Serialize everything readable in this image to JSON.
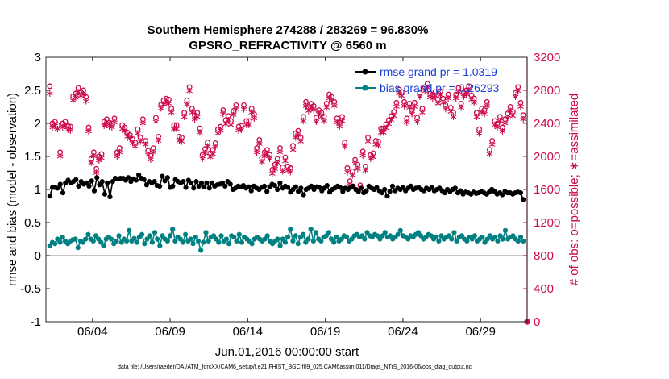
{
  "chart_data": {
    "type": "line",
    "title": "Southern Hemisphere 274288 / 283269 = 96.830%",
    "subtitle": "GPSRO_REFRACTIVITY @ 6560 m",
    "xlabel": "Jun.01,2016 00:00:00 start",
    "ylabel_left": "rmse and bias (model - observation)",
    "ylabel_right": "# of obs: o=possible; ∗=assimilated",
    "footnote": "data file: /Users/raeder/DAI/ATM_forcXX/CAM6_setup/f.e21.FHIST_BGC.f09_025.CAM6assim.011/Diags_NTrS_2016-06/obs_diag_output.nc",
    "x_range_days": [
      1,
      32
    ],
    "x_ticks": [
      {
        "day": 4,
        "label": "06/04"
      },
      {
        "day": 9,
        "label": "06/09"
      },
      {
        "day": 14,
        "label": "06/14"
      },
      {
        "day": 19,
        "label": "06/19"
      },
      {
        "day": 24,
        "label": "06/24"
      },
      {
        "day": 29,
        "label": "06/29"
      }
    ],
    "y_left_range": [
      -1,
      3
    ],
    "y_left_ticks": [
      "-1",
      "-0.5",
      "0",
      "0.5",
      "1",
      "1.5",
      "2",
      "2.5",
      "3"
    ],
    "y_right_range": [
      0,
      3200
    ],
    "y_right_ticks": [
      "0",
      "400",
      "800",
      "1200",
      "1600",
      "2000",
      "2400",
      "2800",
      "3200"
    ],
    "grid": false,
    "legend_position": "top-right",
    "colors": {
      "rmse": "#000000",
      "bias": "#008080",
      "obs": "#cc0a4b",
      "zero_line": "#b3b3b3"
    },
    "series": [
      {
        "name": "rmse grand pr = 1.0319",
        "axis": "left",
        "values": [
          0.9,
          1.03,
          1.03,
          1.02,
          1.08,
          0.95,
          1.1,
          1.14,
          1.1,
          1.12,
          1.15,
          1.05,
          1.12,
          1.08,
          1.1,
          1.05,
          1.13,
          0.98,
          1.18,
          1.07,
          1.12,
          0.93,
          1.1,
          0.89,
          1.12,
          1.17,
          1.16,
          1.17,
          1.17,
          1.14,
          1.18,
          1.12,
          1.16,
          1.14,
          1.22,
          1.17,
          1.15,
          1.07,
          1.12,
          1.1,
          1.12,
          1.06,
          1.05,
          1.2,
          1.13,
          1.18,
          1.03,
          1.05,
          1.15,
          1.12,
          1.1,
          1.12,
          1.03,
          1.14,
          1.1,
          1.02,
          1.12,
          1.05,
          1.1,
          1.04,
          1.1,
          1.02,
          1.1,
          1.05,
          1.07,
          1.08,
          1.1,
          1.05,
          1.12,
          1.08,
          1.0,
          1.02,
          1.05,
          1.04,
          1.06,
          1.02,
          1.04,
          0.98,
          1.05,
          1.02,
          1.0,
          1.03,
          1.05,
          0.97,
          1.04,
          1.08,
          1.06,
          1.0,
          1.1,
          1.02,
          1.05,
          1.03,
          0.96,
          1.0,
          1.04,
          0.97,
          1.02,
          0.92,
          1.0,
          1.02,
          1.05,
          1.0,
          1.04,
          1.03,
          0.98,
          1.02,
          1.06,
          0.96,
          1.0,
          1.02,
          1.05,
          1.03,
          0.97,
          1.02,
          1.0,
          1.03,
          1.05,
          1.0,
          0.97,
          1.02,
          0.95,
          0.98,
          1.05,
          1.02,
          1.0,
          1.03,
          0.98,
          0.95,
          1.0,
          0.9,
          0.97,
          1.05,
          0.98,
          1.02,
          1.0,
          1.03,
          0.98,
          1.02,
          1.05,
          1.0,
          1.02,
          1.03,
          1.0,
          0.98,
          1.02,
          1.0,
          1.03,
          0.98,
          1.0,
          1.02,
          0.98,
          0.95,
          1.0,
          0.97,
          1.0,
          1.02,
          0.95,
          0.98,
          0.93,
          0.96,
          0.95,
          0.93,
          0.96,
          0.94,
          0.95,
          0.97,
          0.95,
          0.93,
          0.96,
          1.0,
          0.97,
          0.93,
          0.95,
          0.92,
          0.97,
          0.95,
          0.95,
          0.93,
          0.95,
          0.96,
          0.95,
          0.85
        ]
      },
      {
        "name": "bias grand pr = 0.26293",
        "axis": "left",
        "values": [
          0.15,
          0.2,
          0.18,
          0.25,
          0.2,
          0.28,
          0.22,
          0.18,
          0.22,
          0.24,
          0.25,
          0.12,
          0.22,
          0.2,
          0.25,
          0.32,
          0.25,
          0.22,
          0.3,
          0.25,
          0.2,
          0.15,
          0.25,
          0.28,
          0.25,
          0.18,
          0.22,
          0.3,
          0.2,
          0.25,
          0.22,
          0.38,
          0.22,
          0.26,
          0.2,
          0.28,
          0.32,
          0.18,
          0.25,
          0.3,
          0.2,
          0.35,
          0.25,
          0.15,
          0.3,
          0.25,
          0.22,
          0.3,
          0.4,
          0.22,
          0.28,
          0.25,
          0.2,
          0.32,
          0.22,
          0.25,
          0.18,
          0.28,
          0.22,
          0.08,
          0.2,
          0.35,
          0.22,
          0.28,
          0.3,
          0.25,
          0.2,
          0.3,
          0.22,
          0.25,
          0.18,
          0.3,
          0.28,
          0.22,
          0.32,
          0.2,
          0.28,
          0.25,
          0.22,
          0.18,
          0.25,
          0.28,
          0.25,
          0.22,
          0.25,
          0.3,
          0.22,
          0.18,
          0.22,
          0.25,
          0.15,
          0.25,
          0.2,
          0.28,
          0.4,
          0.22,
          0.3,
          0.18,
          0.28,
          0.32,
          0.2,
          0.25,
          0.4,
          0.22,
          0.35,
          0.25,
          0.22,
          0.28,
          0.3,
          0.35,
          0.25,
          0.2,
          0.28,
          0.22,
          0.25,
          0.3,
          0.28,
          0.22,
          0.25,
          0.3,
          0.32,
          0.28,
          0.3,
          0.25,
          0.35,
          0.3,
          0.28,
          0.32,
          0.3,
          0.25,
          0.3,
          0.35,
          0.28,
          0.3,
          0.25,
          0.28,
          0.32,
          0.38,
          0.3,
          0.28,
          0.25,
          0.3,
          0.28,
          0.32,
          0.35,
          0.3,
          0.25,
          0.28,
          0.32,
          0.3,
          0.25,
          0.28,
          0.22,
          0.3,
          0.25,
          0.28,
          0.3,
          0.25,
          0.35,
          0.22,
          0.28,
          0.3,
          0.25,
          0.22,
          0.28,
          0.25,
          0.3,
          0.22,
          0.25,
          0.28,
          0.2,
          0.25,
          0.3,
          0.25,
          0.28,
          0.22,
          0.3,
          0.25,
          0.38,
          0.25,
          0.28,
          0.3,
          0.25,
          0.22,
          0.28,
          0.22
        ]
      },
      {
        "name": "obs possible",
        "axis": "right",
        "marker": "o",
        "values": [
          2850,
          2400,
          2420,
          2380,
          2050,
          2400,
          2420,
          2370,
          2360,
          2730,
          2760,
          2830,
          2780,
          2800,
          2720,
          2350,
          1970,
          2050,
          1850,
          2000,
          2030,
          2420,
          2450,
          2410,
          2400,
          2460,
          2050,
          2100,
          2380,
          2350,
          2290,
          2260,
          2210,
          2170,
          2330,
          2230,
          2450,
          2190,
          2070,
          2010,
          2100,
          2470,
          2240,
          2630,
          2680,
          2700,
          2690,
          2580,
          2380,
          2380,
          2240,
          2230,
          2530,
          2680,
          2840,
          2580,
          2500,
          2530,
          2340,
          2020,
          2090,
          2170,
          2040,
          2080,
          2160,
          2330,
          2360,
          2560,
          2440,
          2490,
          2430,
          2550,
          2620,
          2360,
          2370,
          2620,
          2430,
          2430,
          2580,
          2510,
          2100,
          2200,
          1980,
          2050,
          2080,
          2020,
          1840,
          1900,
          1970,
          2100,
          1870,
          1990,
          1880,
          1860,
          2130,
          2280,
          2310,
          2230,
          2480,
          2660,
          2600,
          2640,
          2610,
          2470,
          2560,
          2530,
          2480,
          2640,
          2750,
          2720,
          2660,
          2460,
          2410,
          2480,
          2170,
          1860,
          1700,
          1820,
          1960,
          1900,
          1650,
          2060,
          1880,
          2230,
          2020,
          2040,
          2190,
          2180,
          2340,
          2340,
          2390,
          2440,
          2490,
          2540,
          2650,
          2810,
          2780,
          2660,
          2460,
          2640,
          2560,
          2650,
          2470,
          2770,
          2580,
          2840,
          2880,
          2760,
          2750,
          2780,
          2690,
          2790,
          2700,
          2620,
          2750,
          2590,
          2530,
          2750,
          2830,
          2640,
          2770,
          2800,
          2850,
          2740,
          2700,
          2530,
          2330,
          2580,
          2560,
          2660,
          2080,
          2190,
          2430,
          2400,
          2480,
          2350,
          2450,
          2520,
          2600,
          2540,
          2770,
          2840,
          2650,
          2500
        ]
      },
      {
        "name": "obs assimilated",
        "axis": "right",
        "marker": "*",
        "values": [
          2770,
          2360,
          2380,
          2340,
          2010,
          2360,
          2380,
          2330,
          2320,
          2690,
          2720,
          2790,
          2740,
          2760,
          2680,
          2310,
          1930,
          2010,
          1810,
          1960,
          1990,
          2380,
          2410,
          2370,
          2360,
          2420,
          2010,
          2060,
          2340,
          2310,
          2250,
          2220,
          2170,
          2130,
          2290,
          2190,
          2410,
          2150,
          2030,
          1970,
          2060,
          2430,
          2200,
          2590,
          2640,
          2660,
          2650,
          2540,
          2340,
          2340,
          2200,
          2190,
          2490,
          2640,
          2800,
          2540,
          2460,
          2490,
          2300,
          1980,
          2050,
          2130,
          2000,
          2040,
          2120,
          2290,
          2320,
          2520,
          2400,
          2450,
          2390,
          2510,
          2580,
          2320,
          2330,
          2580,
          2390,
          2390,
          2540,
          2470,
          2060,
          2160,
          1940,
          2010,
          2040,
          1980,
          1800,
          1860,
          1930,
          2060,
          1830,
          1950,
          1840,
          1820,
          2090,
          2240,
          2270,
          2190,
          2440,
          2620,
          2560,
          2600,
          2570,
          2430,
          2520,
          2490,
          2440,
          2600,
          2710,
          2680,
          2620,
          2420,
          2370,
          2440,
          2130,
          1820,
          1660,
          1780,
          1920,
          1860,
          1610,
          2020,
          1840,
          2190,
          1980,
          2000,
          2150,
          2140,
          2300,
          2300,
          2350,
          2400,
          2450,
          2500,
          2610,
          2770,
          2740,
          2620,
          2420,
          2600,
          2520,
          2610,
          2430,
          2730,
          2540,
          2800,
          2840,
          2720,
          2710,
          2740,
          2650,
          2750,
          2660,
          2580,
          2710,
          2550,
          2490,
          2710,
          2790,
          2600,
          2730,
          2760,
          2810,
          2700,
          2660,
          2490,
          2290,
          2540,
          2520,
          2620,
          2040,
          2150,
          2390,
          2360,
          2440,
          2310,
          2410,
          2480,
          2560,
          2500,
          2730,
          2800,
          2610,
          2460
        ]
      }
    ],
    "extra_marks": [
      {
        "series": "obs possible",
        "x_day": 32,
        "value": 0
      }
    ]
  }
}
